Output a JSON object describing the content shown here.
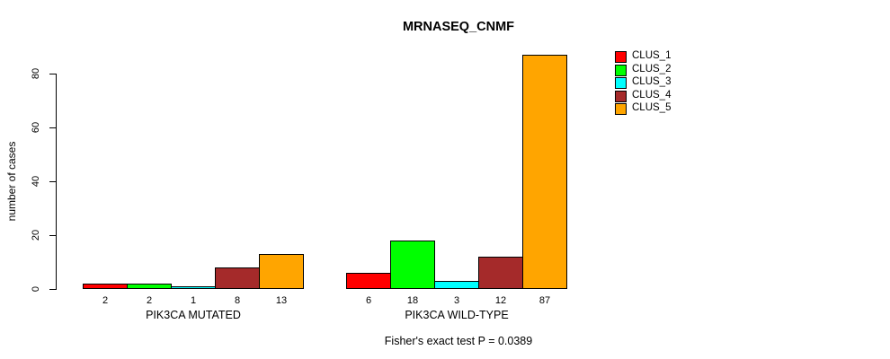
{
  "chart_data": {
    "type": "bar",
    "title": "MRNASEQ_CNMF",
    "xlabel": "",
    "ylabel": "number of cases",
    "ylim": [
      0,
      87
    ],
    "yticks": [
      0,
      20,
      40,
      60,
      80
    ],
    "grid": false,
    "legend_position": "right",
    "bar_border_color": "#000000",
    "background_color": "#ffffff",
    "groups": [
      {
        "label": "PIK3CA MUTATED",
        "values": [
          2,
          2,
          1,
          8,
          13
        ]
      },
      {
        "label": "PIK3CA WILD-TYPE",
        "values": [
          6,
          18,
          3,
          12,
          87
        ]
      }
    ],
    "series": [
      {
        "name": "CLUS_1",
        "color": "#FF0000"
      },
      {
        "name": "CLUS_2",
        "color": "#00FF00"
      },
      {
        "name": "CLUS_3",
        "color": "#00FFFF"
      },
      {
        "name": "CLUS_4",
        "color": "#A52A2A"
      },
      {
        "name": "CLUS_5",
        "color": "#FFA500"
      }
    ],
    "annotation": "Fisher's exact test P = 0.0389"
  }
}
